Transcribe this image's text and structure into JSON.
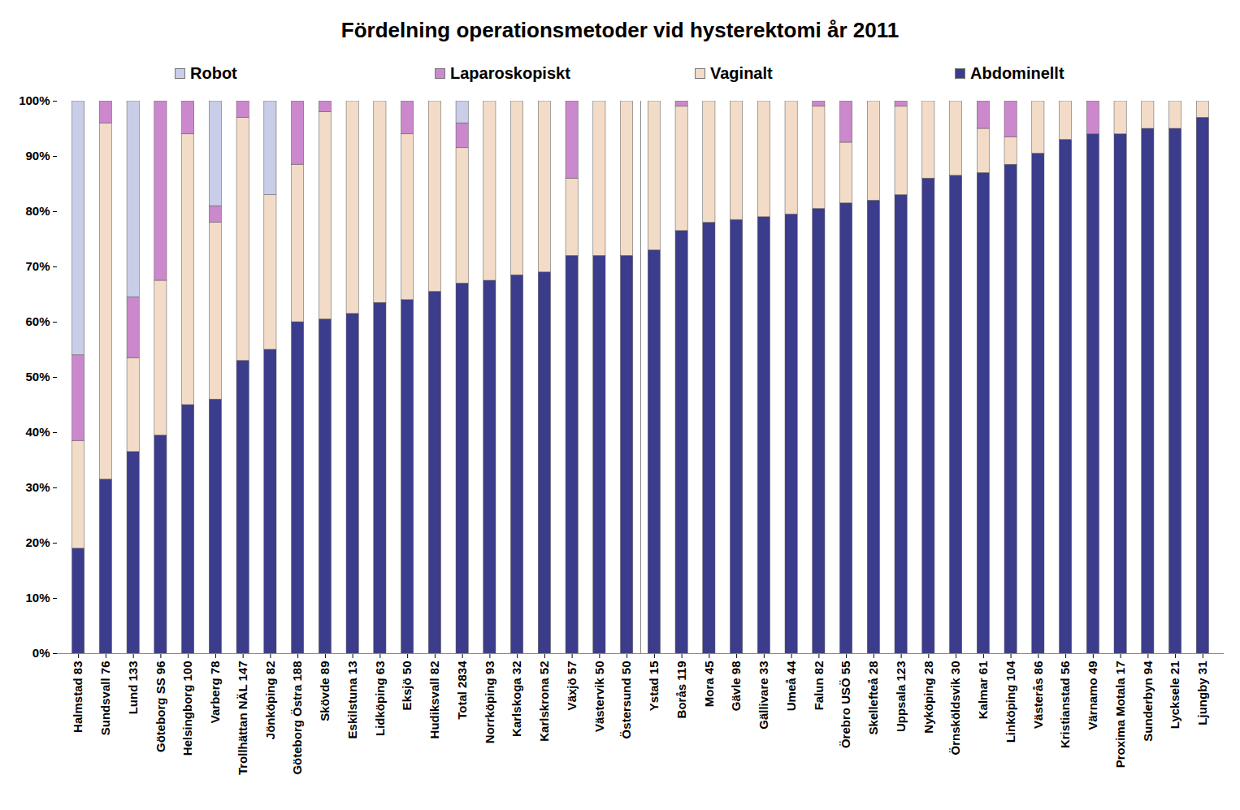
{
  "chart_data": {
    "type": "bar",
    "title": "Fördelning operationsmetoder vid hysterektomi år 2011",
    "stacked": true,
    "legend": "top",
    "grid": false,
    "categories": [
      "Halmstad 83",
      "Sundsvall 76",
      "Lund 133",
      "Göteborg SS 96",
      "Helsingborg 100",
      "Varberg 78",
      "Trollhättan NÄL 147",
      "Jönköping 82",
      "Göteborg Östra 188",
      "Skövde 89",
      "Eskilstuna 13",
      "Lidköping 63",
      "Eksjö 50",
      "Hudiksvall 82",
      "Total 2834",
      "Norrköping 93",
      "Karlskoga 32",
      "Karlskrona 52",
      "Växjö 57",
      "Västervik 50",
      "Östersund 50",
      "Ystad 15",
      "Borås 119",
      "Mora 45",
      "Gävle 98",
      "Gällivare 33",
      "Umeå 44",
      "Falun 82",
      "Örebro USÖ 55",
      "Skellefteå 28",
      "Uppsala 123",
      "Nyköping 28",
      "Örnsköldsvik 30",
      "Kalmar 61",
      "Linköping 104",
      "Västerås 86",
      "Kristianstad 56",
      "Värnamo 49",
      "Proxima Motala 17",
      "Sunderbyn 94",
      "Lycksele 21",
      "Ljungby 31"
    ],
    "series": [
      {
        "name": "Robot",
        "color": "#c9cde8",
        "values": [
          46,
          0,
          35.5,
          0,
          0,
          19,
          0,
          17,
          0,
          0,
          0,
          0,
          0,
          0,
          4,
          0,
          0,
          0,
          0,
          0,
          0,
          0,
          0,
          0,
          0,
          0,
          0,
          0,
          0,
          0,
          0,
          0,
          0,
          0,
          0,
          0,
          0,
          0,
          0,
          0,
          0,
          0
        ]
      },
      {
        "name": "Laparoskopiskt",
        "color": "#cc88cc",
        "values": [
          15.5,
          4,
          11,
          32.5,
          6,
          3,
          3,
          0,
          11.5,
          2,
          0,
          0,
          6,
          0,
          4.5,
          0,
          0,
          0,
          14,
          0,
          0,
          0,
          1,
          0,
          0,
          0,
          0,
          1,
          7.5,
          0,
          1,
          0,
          0,
          5,
          6.5,
          0,
          0,
          6,
          0,
          0,
          0,
          0
        ]
      },
      {
        "name": "Vaginalt",
        "color": "#f2dcc8",
        "values": [
          19.5,
          64.5,
          17,
          28,
          49,
          32,
          44,
          28,
          28.5,
          37.5,
          38.5,
          36.5,
          30,
          34.5,
          24.5,
          32.5,
          31.5,
          31,
          14,
          28,
          28,
          27,
          22.5,
          22,
          21.5,
          21,
          20.5,
          18.5,
          11,
          18,
          16,
          14,
          13.5,
          8,
          5,
          9.5,
          7,
          0,
          6,
          5,
          5,
          3
        ]
      },
      {
        "name": "Abdominellt",
        "color": "#3c3c8c",
        "values": [
          19,
          31.5,
          36.5,
          39.5,
          45,
          46,
          53,
          55,
          60,
          60.5,
          61.5,
          63.5,
          64,
          65.5,
          67,
          67.5,
          68.5,
          69,
          72,
          72,
          72,
          73,
          76.5,
          78,
          78.5,
          79,
          79.5,
          80.5,
          81.5,
          82,
          83,
          86,
          86.5,
          87,
          88.5,
          90.5,
          93,
          94,
          94,
          95,
          95,
          97
        ]
      }
    ],
    "ylim": [
      0,
      100
    ],
    "yticks": [
      {
        "value": 0,
        "label": "0%"
      },
      {
        "value": 10,
        "label": "10%"
      },
      {
        "value": 20,
        "label": "20%"
      },
      {
        "value": 30,
        "label": "30%"
      },
      {
        "value": 40,
        "label": "40%"
      },
      {
        "value": 50,
        "label": "50%"
      },
      {
        "value": 60,
        "label": "60%"
      },
      {
        "value": 70,
        "label": "70%"
      },
      {
        "value": 80,
        "label": "80%"
      },
      {
        "value": 90,
        "label": "90%"
      },
      {
        "value": 100,
        "label": "100%"
      }
    ]
  }
}
